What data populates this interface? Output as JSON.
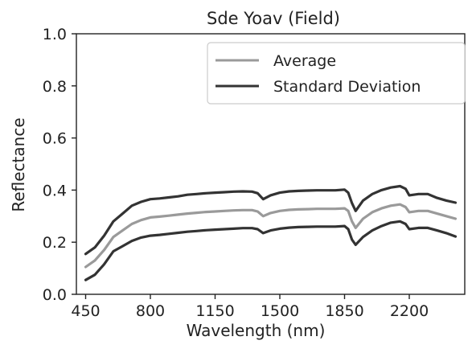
{
  "chart_data": {
    "type": "line",
    "title": "Sde Yoav (Field)",
    "xlabel": "Wavelength (nm)",
    "ylabel": "Reflectance",
    "xlim": [
      400,
      2500
    ],
    "ylim": [
      0.0,
      1.0
    ],
    "xticks": [
      450,
      800,
      1150,
      1500,
      1850,
      2200
    ],
    "yticks": [
      0.0,
      0.2,
      0.4,
      0.6,
      0.8,
      1.0
    ],
    "ytick_labels": [
      "0.0",
      "0.2",
      "0.4",
      "0.6",
      "0.8",
      "1.0"
    ],
    "grid": false,
    "legend_position": "top-right",
    "legend": [
      {
        "label": "Average",
        "color": "#9a9a9a"
      },
      {
        "label": "Standard Deviation",
        "color": "#333333"
      }
    ],
    "x": [
      450,
      500,
      550,
      600,
      650,
      700,
      750,
      800,
      850,
      900,
      950,
      1000,
      1050,
      1100,
      1150,
      1200,
      1250,
      1300,
      1350,
      1380,
      1410,
      1450,
      1500,
      1550,
      1600,
      1650,
      1700,
      1750,
      1800,
      1850,
      1870,
      1890,
      1910,
      1950,
      2000,
      2050,
      2100,
      2150,
      2180,
      2200,
      2250,
      2300,
      2350,
      2400,
      2450
    ],
    "series": [
      {
        "name": "Standard Deviation",
        "role": "upper",
        "color": "#333333",
        "values": [
          0.155,
          0.18,
          0.225,
          0.28,
          0.31,
          0.34,
          0.355,
          0.365,
          0.368,
          0.372,
          0.376,
          0.382,
          0.385,
          0.388,
          0.39,
          0.392,
          0.394,
          0.395,
          0.394,
          0.388,
          0.365,
          0.38,
          0.39,
          0.395,
          0.397,
          0.398,
          0.399,
          0.399,
          0.399,
          0.402,
          0.39,
          0.35,
          0.32,
          0.36,
          0.385,
          0.4,
          0.41,
          0.415,
          0.405,
          0.38,
          0.385,
          0.385,
          0.37,
          0.36,
          0.352
        ]
      },
      {
        "name": "Average",
        "role": "mean",
        "color": "#9a9a9a",
        "values": [
          0.105,
          0.13,
          0.17,
          0.22,
          0.245,
          0.27,
          0.285,
          0.295,
          0.298,
          0.302,
          0.306,
          0.31,
          0.313,
          0.316,
          0.318,
          0.32,
          0.322,
          0.323,
          0.323,
          0.318,
          0.3,
          0.312,
          0.32,
          0.324,
          0.326,
          0.327,
          0.328,
          0.328,
          0.328,
          0.33,
          0.32,
          0.28,
          0.255,
          0.29,
          0.315,
          0.33,
          0.34,
          0.345,
          0.335,
          0.315,
          0.32,
          0.32,
          0.31,
          0.3,
          0.29
        ]
      },
      {
        "name": "Standard Deviation",
        "role": "lower",
        "color": "#333333",
        "values": [
          0.055,
          0.075,
          0.115,
          0.165,
          0.185,
          0.205,
          0.218,
          0.225,
          0.228,
          0.232,
          0.236,
          0.24,
          0.243,
          0.246,
          0.248,
          0.25,
          0.252,
          0.254,
          0.254,
          0.25,
          0.235,
          0.245,
          0.252,
          0.256,
          0.258,
          0.259,
          0.26,
          0.26,
          0.26,
          0.262,
          0.25,
          0.21,
          0.19,
          0.22,
          0.245,
          0.262,
          0.275,
          0.28,
          0.27,
          0.25,
          0.255,
          0.255,
          0.245,
          0.235,
          0.222
        ]
      }
    ]
  }
}
